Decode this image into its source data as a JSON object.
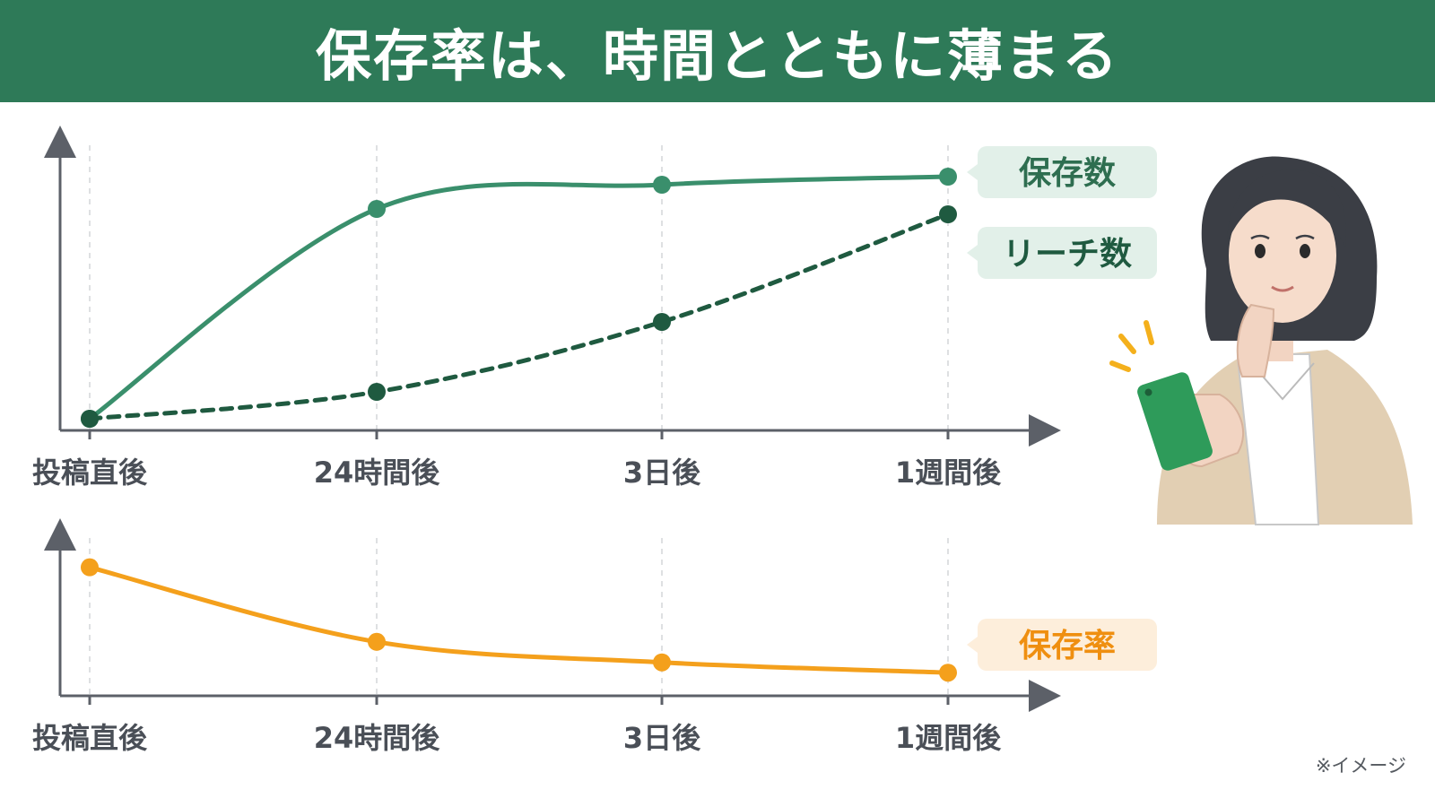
{
  "title": "保存率は、時間とともに薄まる",
  "note": "※イメージ",
  "colors": {
    "header_bg": "#2e7a58",
    "saves": "#3a8f6c",
    "reach": "#1f5a40",
    "save_rate": "#f4a01c",
    "axis": "#5c6068"
  },
  "chart_data": [
    {
      "type": "line",
      "categories": [
        "投稿直後",
        "24時間後",
        "3日後",
        "1週間後"
      ],
      "series": [
        {
          "name": "保存数",
          "values": [
            0,
            78,
            87,
            90
          ],
          "style": "solid",
          "color": "#3a8f6c"
        },
        {
          "name": "リーチ数",
          "values": [
            0,
            10,
            36,
            76
          ],
          "style": "dashed",
          "color": "#1f5a40"
        }
      ],
      "ylim": [
        0,
        100
      ],
      "xlabel": "",
      "ylabel": "",
      "grid": "vertical dashed",
      "legend": "right"
    },
    {
      "type": "line",
      "categories": [
        "投稿直後",
        "24時間後",
        "3日後",
        "1週間後"
      ],
      "series": [
        {
          "name": "保存率",
          "values": [
            100,
            42,
            26,
            18
          ],
          "style": "solid",
          "color": "#f4a01c"
        }
      ],
      "ylim": [
        0,
        120
      ],
      "xlabel": "",
      "ylabel": "",
      "grid": "vertical dashed",
      "legend": "right"
    }
  ],
  "illustration": {
    "subject": "woman-looking-at-smartphone-icon"
  }
}
